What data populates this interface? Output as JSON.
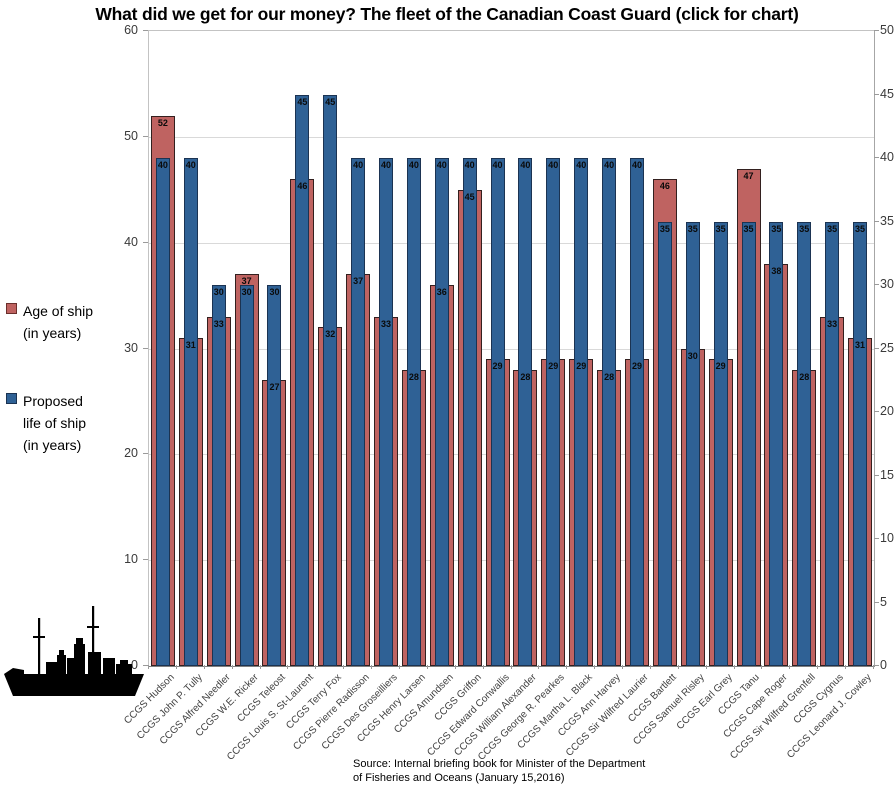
{
  "title": "What did we get for our money? The fleet of the Canadian Coast Guard (click for chart)",
  "legend": {
    "age": {
      "label": "Age of ship\n(in years)",
      "color": "#bf6361",
      "border": "#6b2f2c"
    },
    "life": {
      "label": "Proposed\nlife of ship\n(in years)",
      "color": "#2f6195",
      "border": "#1b3352"
    }
  },
  "source": "Source: Internal  briefing book for Minister of the Department\nof Fisheries and Oceans (January 15,2016)",
  "icons": {
    "ship": "ship-silhouette-icon"
  },
  "chart_data": {
    "type": "bar",
    "title": "What did we get for our money? The fleet of the Canadian Coast Guard (click for chart)",
    "categories": [
      "CCGS Hudson",
      "CCGS John P. Tully",
      "CCGS Alfred Needler",
      "CCGS W.E. Ricker",
      "CCGS Teleost",
      "CCGS Louis S. St-Laurent",
      "CCGS Terry Fox",
      "CCGS Pierre Radisson",
      "CCGS Des Groseilliers",
      "CCGS Henry Larsen",
      "CCGS Amundsen",
      "CCGS Griffon",
      "CCGS Edward Conwallis",
      "CCGS William Alexander",
      "CCGS George R. Pearkes",
      "CCGS Martha L. Black",
      "CCGS Ann Harvey",
      "CCGS Sir Wilfred Laurier",
      "CCGS Bartlett",
      "CCGS Samuel Risley",
      "CCGS Earl Grey",
      "CCGS Tanu",
      "CCGS Cape Roger",
      "CCGS Sir Wilfred Grenfell",
      "CCGS Cygnus",
      "CCGS Leonard J. Cowley"
    ],
    "series": [
      {
        "name": "Age of ship (in years)",
        "axis": "left",
        "color": "#bf6361",
        "border": "#33201f",
        "values": [
          52,
          31,
          33,
          37,
          27,
          46,
          32,
          37,
          33,
          28,
          36,
          45,
          29,
          28,
          29,
          29,
          28,
          29,
          46,
          30,
          29,
          47,
          38,
          28,
          33,
          31
        ]
      },
      {
        "name": "Proposed life of ship (in years)",
        "axis": "right",
        "color": "#2f6195",
        "border": "#1b3352",
        "values": [
          40,
          40,
          30,
          30,
          30,
          45,
          45,
          40,
          40,
          40,
          40,
          40,
          40,
          40,
          40,
          40,
          40,
          40,
          35,
          35,
          35,
          35,
          35,
          35,
          35,
          35
        ]
      }
    ],
    "left_axis": {
      "min": 0,
      "max": 60,
      "step": 10,
      "ticks": [
        0,
        10,
        20,
        30,
        40,
        50,
        60
      ]
    },
    "right_axis": {
      "min": 0,
      "max": 50,
      "step": 5,
      "ticks": [
        0,
        5,
        10,
        15,
        20,
        25,
        30,
        35,
        40,
        45,
        50
      ]
    },
    "gridlines": "on",
    "data_labels": true,
    "legend_position": "left"
  }
}
